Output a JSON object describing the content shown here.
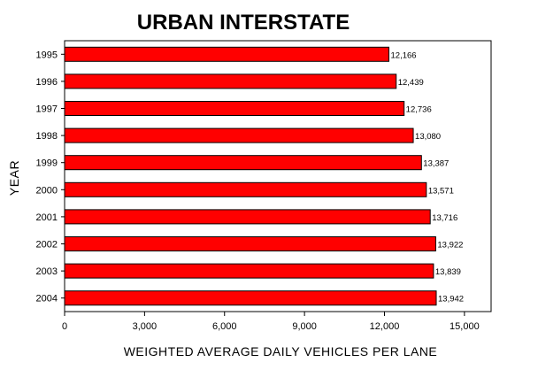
{
  "chart_data": {
    "type": "bar",
    "orientation": "horizontal",
    "title": "URBAN INTERSTATE",
    "xlabel": "WEIGHTED AVERAGE DAILY VEHICLES PER LANE",
    "ylabel": "YEAR",
    "categories": [
      "1995",
      "1996",
      "1997",
      "1998",
      "1999",
      "2000",
      "2001",
      "2002",
      "2003",
      "2004"
    ],
    "values": [
      12166,
      12439,
      12736,
      13080,
      13387,
      13571,
      13716,
      13922,
      13839,
      13942
    ],
    "value_labels": [
      "12,166",
      "12,439",
      "12,736",
      "13,080",
      "13,387",
      "13,571",
      "13,716",
      "13,922",
      "13,839",
      "13,942"
    ],
    "xlim": [
      0,
      16000
    ],
    "xticks": [
      0,
      3000,
      6000,
      9000,
      12000,
      15000
    ],
    "xtick_labels": [
      "0",
      "3,000",
      "6,000",
      "9,000",
      "12,000",
      "15,000"
    ],
    "bar_color": "#ff0000",
    "bar_edge_color": "#000000",
    "grid": false,
    "legend": "none"
  }
}
